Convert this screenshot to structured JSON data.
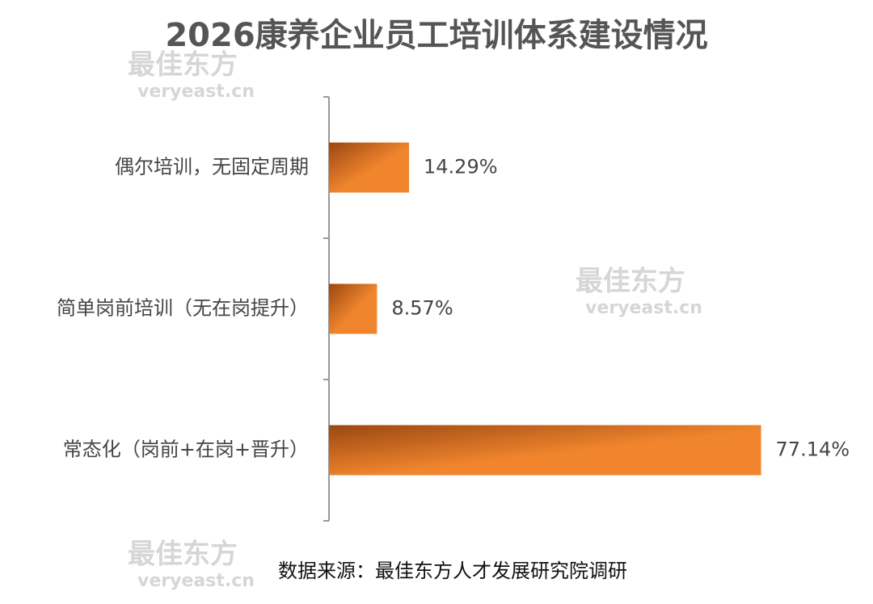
{
  "chart_data": {
    "type": "bar",
    "orientation": "horizontal",
    "title": "2026康养企业员工培训体系建设情况",
    "categories": [
      "偶尔培训，无固定周期",
      "简单岗前培训（无在岗提升）",
      "常态化（岗前+在岗+晋升）"
    ],
    "values": [
      14.29,
      8.57,
      77.14
    ],
    "value_labels": [
      "14.29%",
      "8.57%",
      "77.14%"
    ],
    "color": "#f0852d",
    "xlim": [
      0,
      85
    ],
    "source": "数据来源：最佳东方人才发展研究院调研",
    "watermark": {
      "text": "最佳东方",
      "url": "veryeast.cn"
    }
  }
}
